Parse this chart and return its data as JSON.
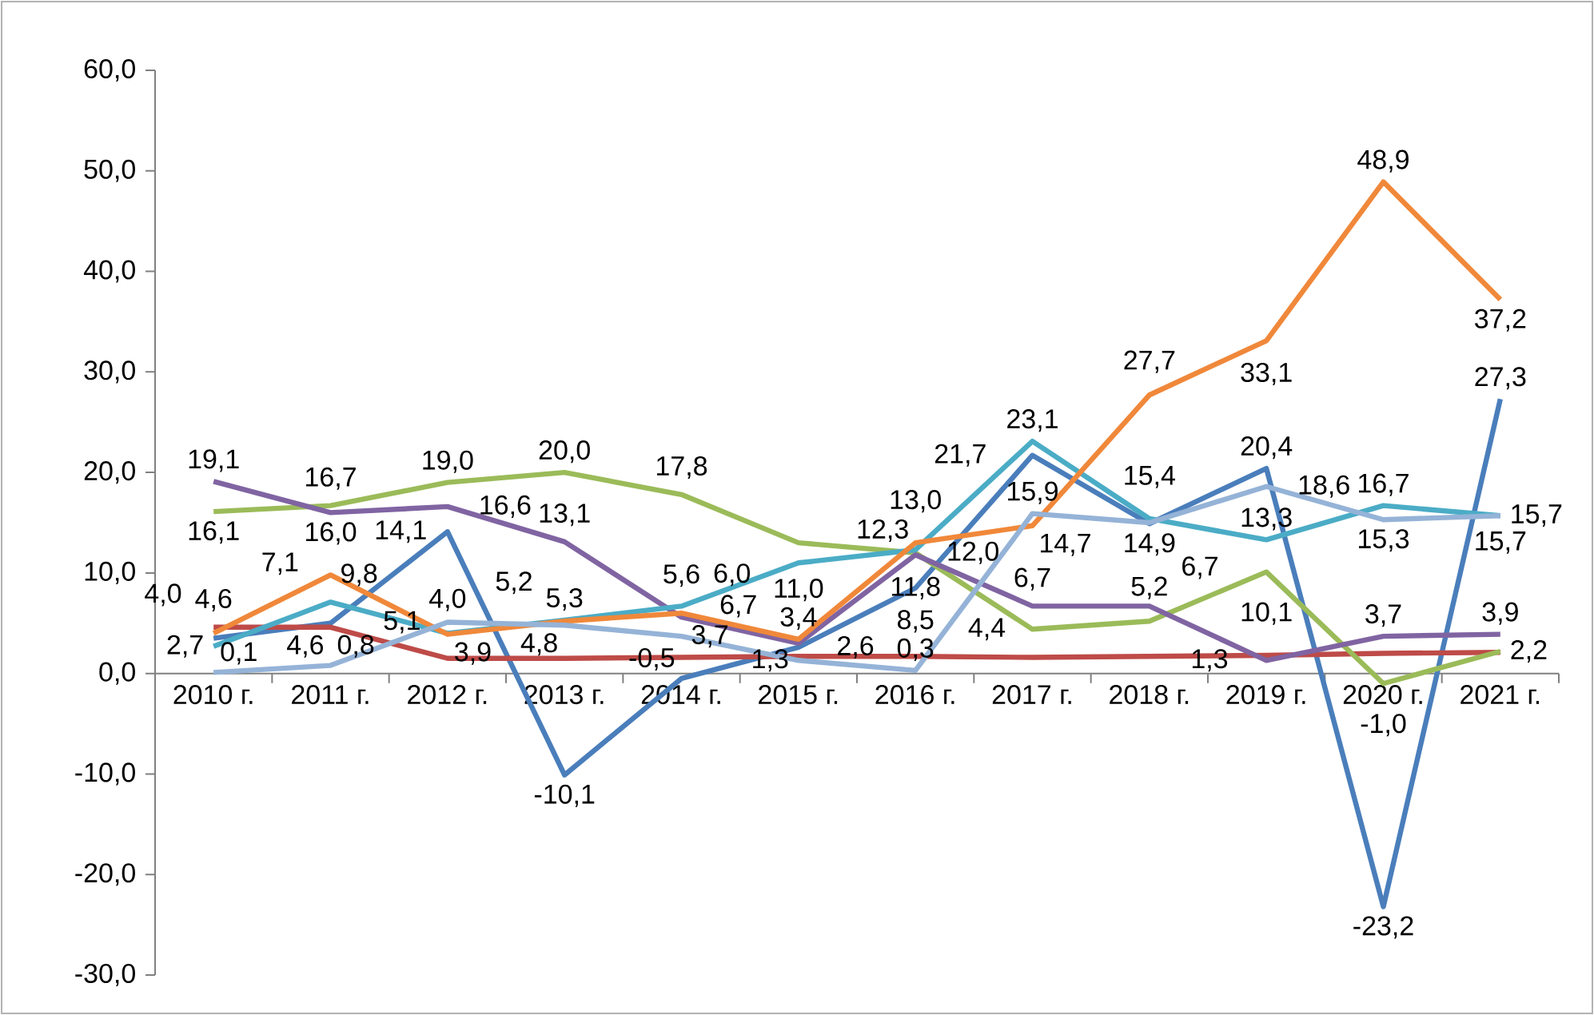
{
  "chart_data": {
    "type": "line",
    "categories": [
      "2010 г.",
      "2011 г.",
      "2012 г.",
      "2013 г.",
      "2014 г.",
      "2015 г.",
      "2016 г.",
      "2017 г.",
      "2018 г.",
      "2019 г.",
      "2020 г.",
      "2021 г."
    ],
    "ylim": [
      -30,
      60
    ],
    "yticks": [
      {
        "value": -30,
        "label": "-30,0"
      },
      {
        "value": -20,
        "label": "-20,0"
      },
      {
        "value": -10,
        "label": "-10,0"
      },
      {
        "value": 0,
        "label": "0,0"
      },
      {
        "value": 10,
        "label": "10,0"
      },
      {
        "value": 20,
        "label": "20,0"
      },
      {
        "value": 30,
        "label": "30,0"
      },
      {
        "value": 40,
        "label": "40,0"
      },
      {
        "value": 50,
        "label": "50,0"
      },
      {
        "value": 60,
        "label": "60,0"
      }
    ],
    "grid": false,
    "marker": "none",
    "line_style": "solid",
    "series": [
      {
        "color": "#4a7ebb",
        "values": [
          3.5,
          5.0,
          14.1,
          -10.1,
          -0.5,
          2.6,
          8.5,
          21.7,
          14.9,
          20.4,
          -23.2,
          27.3
        ],
        "value_labels": [
          null,
          null,
          "14,1",
          "-10,1",
          "-0,5",
          "2,6",
          "8,5",
          "21,7",
          "14,9",
          "20,4",
          "-23,2",
          "27,3"
        ]
      },
      {
        "color": "#be4b48",
        "values": [
          4.6,
          4.6,
          1.5,
          1.5,
          1.6,
          1.7,
          1.7,
          1.6,
          1.7,
          1.8,
          2.0,
          2.1
        ],
        "value_labels": [
          "4,6",
          "4,6",
          null,
          null,
          null,
          null,
          null,
          null,
          null,
          null,
          null,
          null
        ]
      },
      {
        "color": "#9bbb59",
        "values": [
          16.1,
          16.7,
          19.0,
          20.0,
          17.8,
          13.0,
          12.0,
          4.4,
          5.2,
          10.1,
          -1.0,
          2.2
        ],
        "value_labels": [
          "16,1",
          "16,7",
          "19,0",
          "20,0",
          "17,8",
          null,
          "12,0",
          "4,4",
          "5,2",
          "10,1",
          "-1,0",
          "2,2"
        ]
      },
      {
        "color": "#8064a2",
        "values": [
          19.1,
          16.0,
          16.6,
          13.1,
          5.6,
          3.0,
          11.8,
          6.7,
          6.7,
          1.3,
          3.7,
          3.9
        ],
        "value_labels": [
          "19,1",
          "16,0",
          "16,6",
          "13,1",
          "5,6",
          null,
          "11,8",
          "6,7",
          "6,7",
          "1,3",
          "3,7",
          "3,9"
        ]
      },
      {
        "color": "#4bacc6",
        "values": [
          2.7,
          7.1,
          4.0,
          5.3,
          6.7,
          11.0,
          12.3,
          23.1,
          15.4,
          13.3,
          16.7,
          15.7
        ],
        "value_labels": [
          "2,7",
          "7,1",
          "4,0",
          "5,3",
          "6,7",
          "11,0",
          "12,3",
          "23,1",
          "15,4",
          "13,3",
          "16,7",
          "15,7"
        ]
      },
      {
        "color": "#f0883a",
        "values": [
          4.0,
          9.8,
          3.9,
          5.2,
          6.0,
          3.4,
          13.0,
          14.7,
          27.7,
          33.1,
          48.9,
          37.2
        ],
        "value_labels": [
          "4,0",
          "9,8",
          "3,9",
          "5,2",
          "6,0",
          "3,4",
          "13,0",
          "14,7",
          "27,7",
          "33,1",
          "48,9",
          "37,2"
        ]
      },
      {
        "color": "#95b3d7",
        "values": [
          0.1,
          0.8,
          5.1,
          4.8,
          3.7,
          1.3,
          0.3,
          15.9,
          15.0,
          18.6,
          15.3,
          15.7
        ],
        "value_labels": [
          "0,1",
          "0,8",
          "5,1",
          "4,8",
          "3,7",
          "1,3",
          "0,3",
          "15,9",
          null,
          "18,6",
          "15,3",
          "15,7"
        ]
      }
    ]
  }
}
